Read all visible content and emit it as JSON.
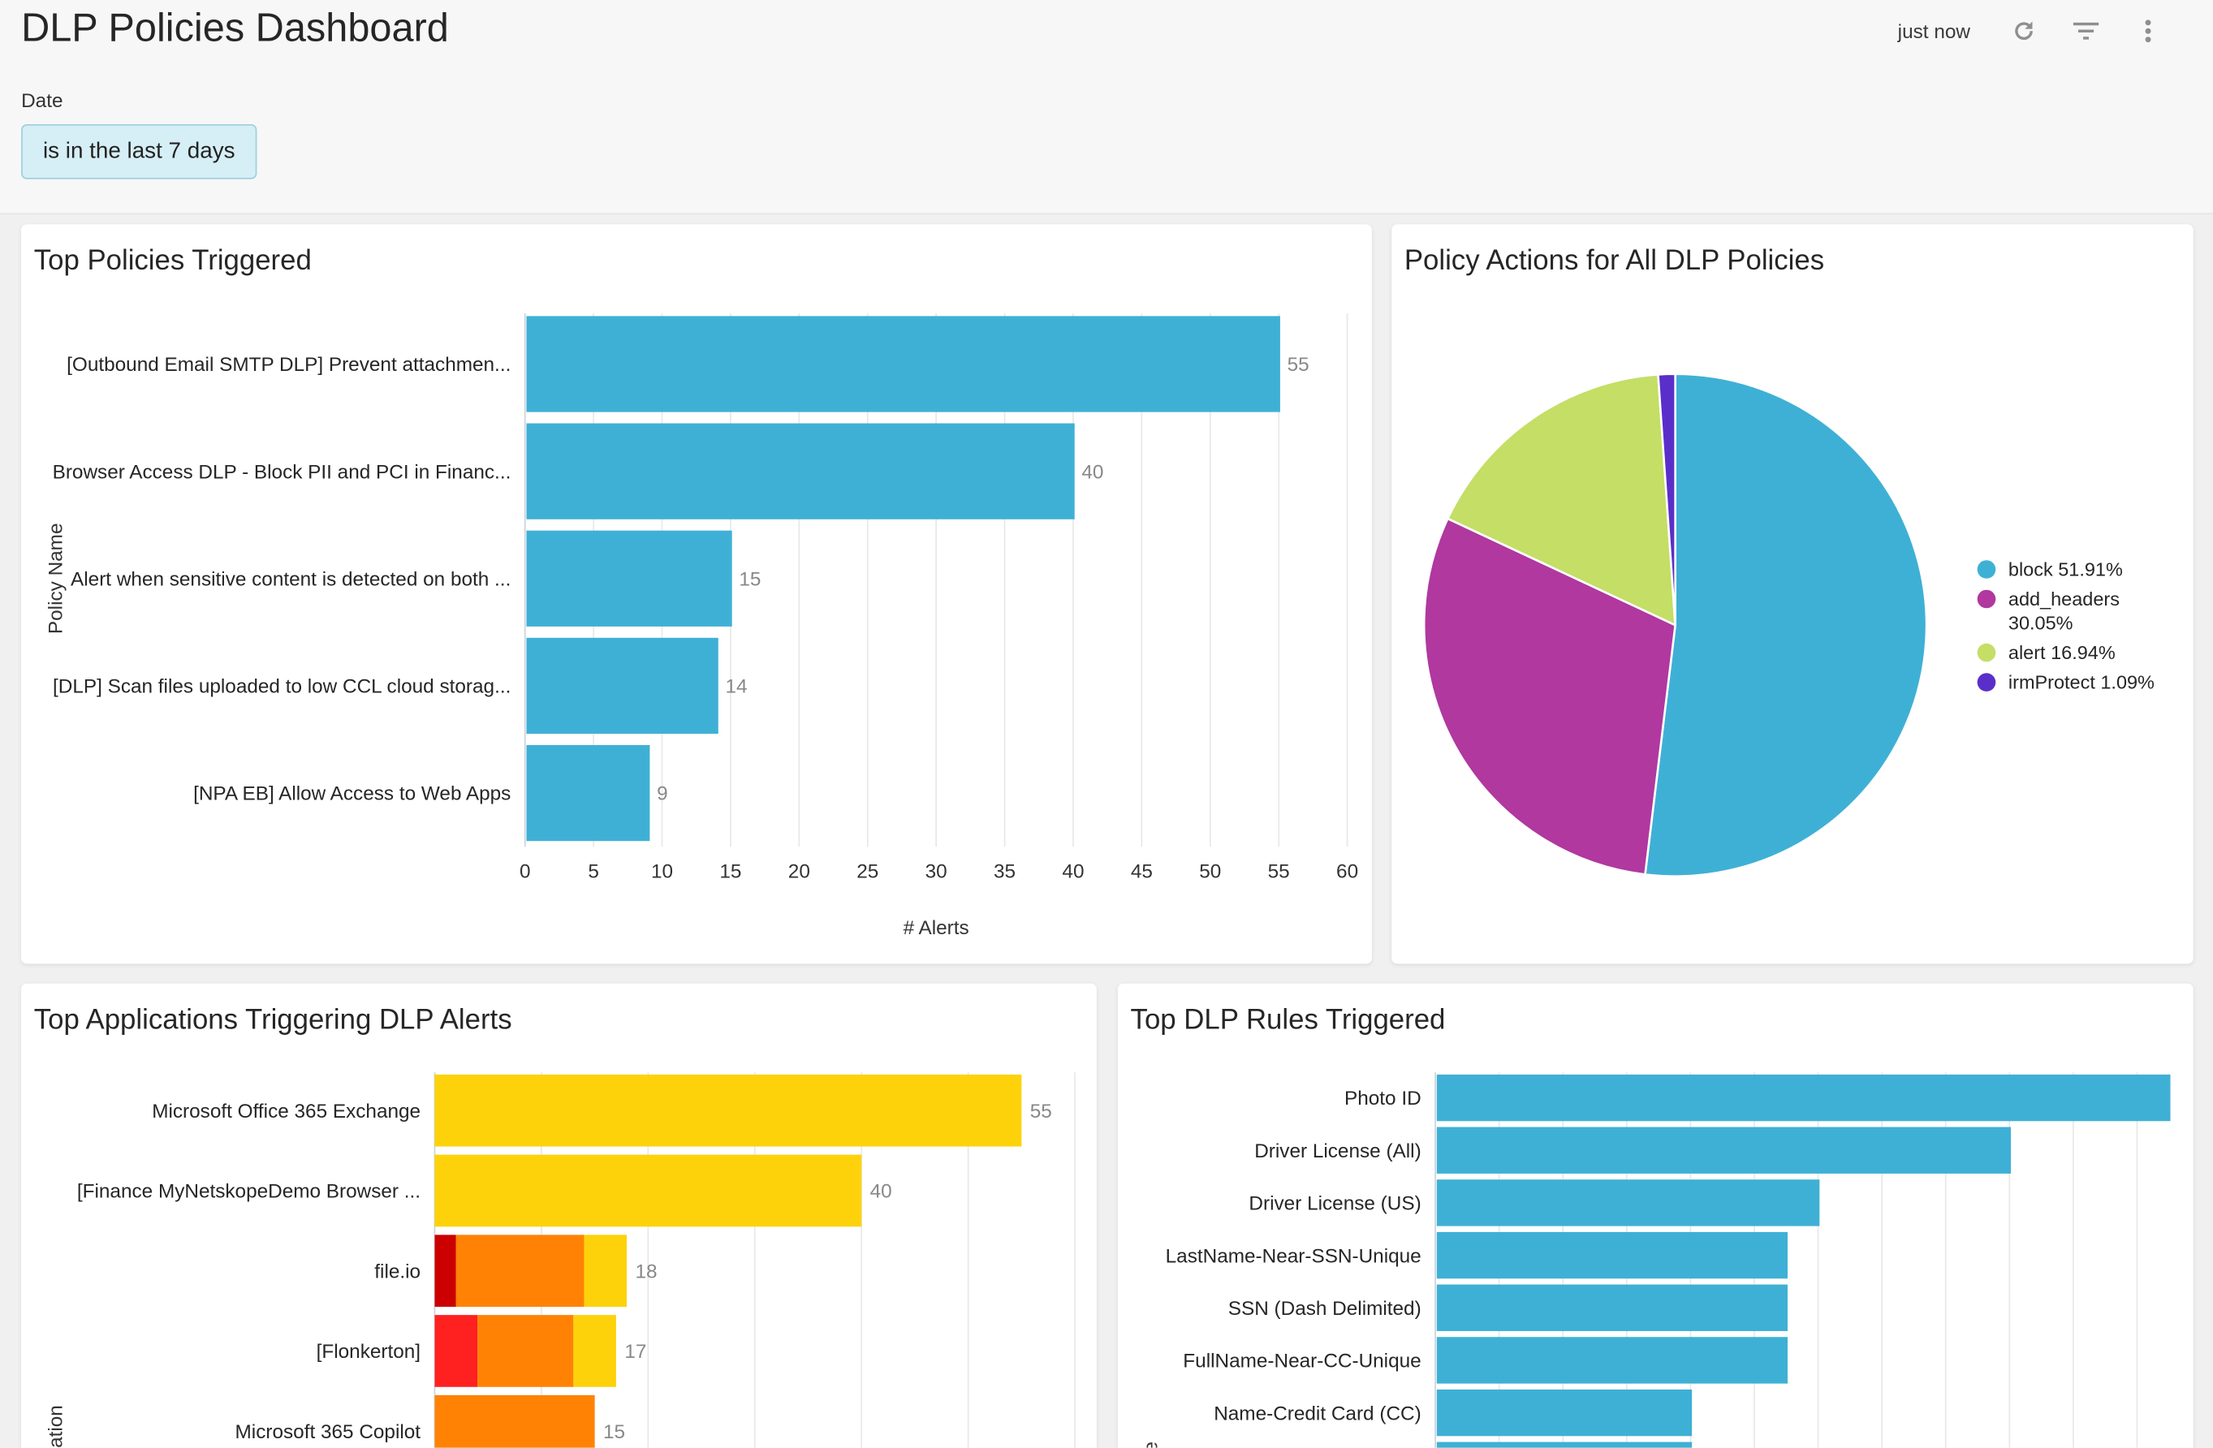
{
  "header": {
    "title": "DLP Policies Dashboard",
    "updated": "just now",
    "icons": [
      "refresh-icon",
      "filter-icon",
      "more-vertical-icon"
    ]
  },
  "filters": {
    "date_label": "Date",
    "date_value": "is in the last 7 days"
  },
  "colors": {
    "accent": "#3fb0d5",
    "filter_bg": "#d6eef5"
  },
  "chart_data": [
    {
      "type": "bar",
      "orientation": "horizontal",
      "title": "Top Policies Triggered",
      "xlabel": "# Alerts",
      "ylabel": "Policy Name",
      "categories": [
        "[Outbound Email SMTP DLP] Prevent attachmen...",
        "Browser Access DLP - Block PII and PCI in Financ...",
        "Alert when sensitive content is detected on both ...",
        "[DLP] Scan files uploaded to low CCL cloud storag...",
        "[NPA EB] Allow Access to Web Apps"
      ],
      "values": [
        55,
        40,
        15,
        14,
        9
      ],
      "xlim": [
        0,
        60
      ],
      "xticks": [
        "0",
        "5",
        "10",
        "15",
        "20",
        "25",
        "30",
        "35",
        "40",
        "45",
        "50",
        "55",
        "60"
      ],
      "grid": true,
      "color": "#3fb0d5",
      "data_labels": true
    },
    {
      "type": "pie",
      "title": "Policy Actions for All DLP Policies",
      "legend_position": "right",
      "slices": [
        {
          "label": "block",
          "value": 51.91,
          "text": "block 51.91%",
          "color": "#3fb0d5"
        },
        {
          "label": "add_headers",
          "value": 30.05,
          "text": "add_headers 30.05%",
          "color": "#b0389f"
        },
        {
          "label": "alert",
          "value": 16.94,
          "text": "alert 16.94%",
          "color": "#c4de66"
        },
        {
          "label": "irmProtect",
          "value": 1.09,
          "text": "irmProtect 1.09%",
          "color": "#5a2fc9"
        }
      ]
    },
    {
      "type": "bar",
      "orientation": "horizontal",
      "stacked": true,
      "title": "Top Applications Triggering DLP Alerts",
      "ylabel": "Application",
      "categories": [
        "Microsoft Office 365 Exchange",
        "[Finance MyNetskopeDemo Browser ...",
        "file.io",
        "[Flonkerton]",
        "Microsoft 365 Copilot"
      ],
      "series": [
        {
          "color": "#cc0000",
          "values": [
            0,
            0,
            2,
            0,
            0
          ]
        },
        {
          "color": "#ff2020",
          "values": [
            0,
            0,
            0,
            4,
            0
          ]
        },
        {
          "color": "#ff8205",
          "values": [
            0,
            0,
            12,
            9,
            15
          ]
        },
        {
          "color": "#fdd20a",
          "values": [
            55,
            40,
            4,
            4,
            0
          ]
        }
      ],
      "totals": [
        55,
        40,
        18,
        17,
        15
      ],
      "xlim": [
        0,
        60
      ],
      "grid": true,
      "data_labels": true
    },
    {
      "type": "bar",
      "orientation": "horizontal",
      "title": "Top DLP Rules Triggered",
      "ylabel": "Rule",
      "categories": [
        "Photo ID",
        "Driver License (All)",
        "Driver License (US)",
        "LastName-Near-SSN-Unique",
        "SSN (Dash Delimited)",
        "FullName-Near-CC-Unique",
        "Name-Credit Card (CC)",
        ""
      ],
      "values": [
        23,
        18,
        12,
        11,
        11,
        11,
        8,
        8
      ],
      "grid": true,
      "color": "#3fb0d5"
    }
  ]
}
